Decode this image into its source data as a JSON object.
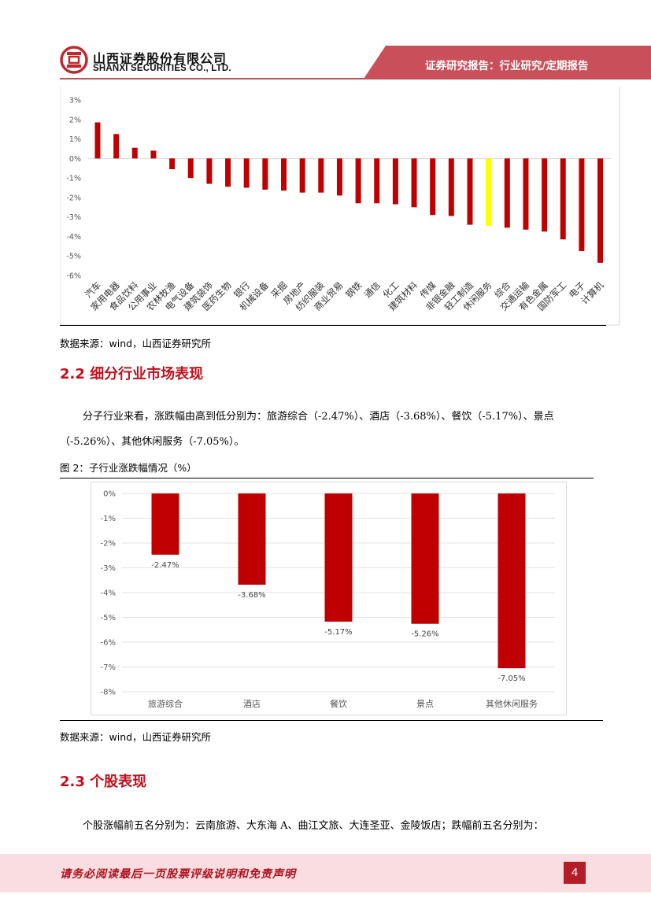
{
  "header": {
    "company_cn": "山西证券股份有限公司",
    "company_en": "SHANXI SECURITIES CO., LTD.",
    "report_type": "证券研究报告：行业研究/定期报告",
    "colors": {
      "brand_red": "#c0282f",
      "header_band": "#c9505a"
    }
  },
  "chart1": {
    "chart_data": {
      "type": "bar",
      "categories": [
        "汽车",
        "家用电器",
        "食品饮料",
        "公用事业",
        "农林牧渔",
        "电气设备",
        "建筑装饰",
        "医药生物",
        "银行",
        "机械设备",
        "采掘",
        "房地产",
        "纺织服装",
        "商业贸易",
        "钢铁",
        "通信",
        "化工",
        "建筑材料",
        "传媒",
        "非银金融",
        "轻工制造",
        "休闲服务",
        "综合",
        "交通运输",
        "有色金属",
        "国防军工",
        "电子",
        "计算机"
      ],
      "values": [
        1.85,
        1.25,
        0.55,
        0.4,
        -0.55,
        -1.0,
        -1.3,
        -1.45,
        -1.5,
        -1.6,
        -1.65,
        -1.75,
        -1.75,
        -1.9,
        -2.3,
        -2.3,
        -2.35,
        -2.5,
        -2.9,
        -2.95,
        -3.4,
        -3.45,
        -3.55,
        -3.65,
        -3.75,
        -4.15,
        -4.75,
        -5.35
      ],
      "highlight_category": "休闲服务",
      "y_ticks": [
        "3%",
        "2%",
        "1%",
        "0%",
        "-1%",
        "-2%",
        "-3%",
        "-4%",
        "-5%",
        "-6%"
      ],
      "ylim": [
        -6,
        3
      ],
      "colors": {
        "bar": "#c00000",
        "highlight": "#ffff00"
      },
      "grid": false
    },
    "source": "数据来源：wind，山西证券研究所"
  },
  "section_2_2": {
    "title": "2.2 细分行业市场表现",
    "para_line1": "分子行业来看，涨跌幅由高到低分别为：旅游综合（-2.47%）、酒店（-3.68%）、餐饮（-5.17%）、景点",
    "para_line2": "（-5.26%）、其他休闲服务（-7.05%）。"
  },
  "chart2": {
    "caption": "图 2：子行业涨跌幅情况（%）",
    "chart_data": {
      "type": "bar",
      "categories": [
        "旅游综合",
        "酒店",
        "餐饮",
        "景点",
        "其他休闲服务"
      ],
      "values": [
        -2.47,
        -3.68,
        -5.17,
        -5.26,
        -7.05
      ],
      "data_labels": [
        "-2.47%",
        "-3.68%",
        "-5.17%",
        "-5.26%",
        "-7.05%"
      ],
      "y_ticks": [
        "0%",
        "-1%",
        "-2%",
        "-3%",
        "-4%",
        "-5%",
        "-6%",
        "-7%",
        "-8%"
      ],
      "ylim": [
        -8,
        0
      ],
      "colors": {
        "bar": "#c00000"
      },
      "grid": true
    },
    "source": "数据来源：wind，山西证券研究所"
  },
  "section_2_3": {
    "title": "2.3 个股表现",
    "para_line1": "个股涨幅前五名分别为：云南旅游、大东海 A、曲江文旅、大连圣亚、金陵饭店；跌幅前五名分别为："
  },
  "footer": {
    "disclaimer": "请务必阅读最后一页股票评级说明和免责声明",
    "page_number": "4"
  }
}
